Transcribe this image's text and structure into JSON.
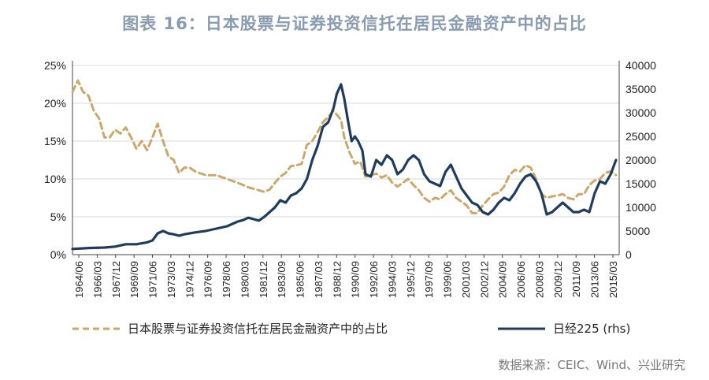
{
  "title": "图表 16：日本股票与证券投资信托在居民金融资产中的占比",
  "source": "数据来源：CEIC、Wind、兴业研究",
  "colors": {
    "share": "#c8a96b",
    "nikkei": "#1f3c5c",
    "axis": "#444444"
  },
  "chart_data": {
    "type": "line",
    "x_tick_labels": [
      "1964/06",
      "1966/03",
      "1967/12",
      "1969/09",
      "1971/06",
      "1973/03",
      "1974/12",
      "1976/09",
      "1978/06",
      "1980/03",
      "1981/12",
      "1983/09",
      "1985/06",
      "1987/03",
      "1988/12",
      "1990/09",
      "1992/06",
      "1994/03",
      "1995/12",
      "1997/09",
      "1999/06",
      "2001/03",
      "2002/12",
      "2004/09",
      "2006/06",
      "2008/03",
      "2009/12",
      "2011/09",
      "2013/06",
      "2015/03"
    ],
    "y_left": {
      "ticks": [
        "0%",
        "5%",
        "10%",
        "15%",
        "20%",
        "25%"
      ],
      "min": 0,
      "max": 25,
      "unit": "%"
    },
    "y_right": {
      "ticks": [
        "0",
        "5000",
        "10000",
        "15000",
        "20000",
        "25000",
        "30000",
        "35000",
        "40000"
      ],
      "min": 0,
      "max": 40000
    },
    "series": [
      {
        "name": "日本股票与证券投资信托在居民金融资产中的占比",
        "axis": "left",
        "style": "dashed",
        "x": [
          1964.5,
          1965.0,
          1965.5,
          1966.0,
          1966.5,
          1967.0,
          1967.5,
          1968.0,
          1968.5,
          1969.0,
          1969.5,
          1970.0,
          1970.5,
          1971.0,
          1971.5,
          1972.0,
          1972.5,
          1973.0,
          1973.5,
          1974.0,
          1974.5,
          1975.0,
          1975.5,
          1976.0,
          1977.0,
          1978.0,
          1979.0,
          1980.0,
          1981.0,
          1981.5,
          1982.0,
          1982.5,
          1983.0,
          1983.5,
          1984.0,
          1984.5,
          1985.0,
          1985.5,
          1986.0,
          1986.5,
          1987.0,
          1987.5,
          1988.0,
          1988.5,
          1989.0,
          1989.3,
          1989.7,
          1990.0,
          1990.5,
          1991.0,
          1991.5,
          1992.0,
          1992.5,
          1993.0,
          1993.5,
          1994.0,
          1994.5,
          1995.0,
          1995.5,
          1996.0,
          1996.5,
          1997.0,
          1997.5,
          1998.0,
          1998.5,
          1999.0,
          1999.5,
          2000.0,
          2000.5,
          2001.0,
          2001.5,
          2002.0,
          2002.5,
          2003.0,
          2003.5,
          2004.0,
          2004.5,
          2005.0,
          2005.5,
          2006.0,
          2006.5,
          2007.0,
          2007.5,
          2008.0,
          2008.5,
          2009.0,
          2009.5,
          2010.0,
          2010.5,
          2011.0,
          2011.5,
          2012.0,
          2012.5,
          2013.0,
          2013.5,
          2014.0,
          2014.5,
          2015.0,
          2015.5
        ],
        "values": [
          21.5,
          23.0,
          21.5,
          21.0,
          19.0,
          18.0,
          15.5,
          15.5,
          16.5,
          16.0,
          16.8,
          15.5,
          14.0,
          15.0,
          13.8,
          15.5,
          17.3,
          15.0,
          13.0,
          12.5,
          10.8,
          11.5,
          11.5,
          11.0,
          10.5,
          10.5,
          10.0,
          9.5,
          8.9,
          8.7,
          8.5,
          8.3,
          8.6,
          9.5,
          10.3,
          10.8,
          11.7,
          11.8,
          12.0,
          14.5,
          15.0,
          16.2,
          17.5,
          18.2,
          19.0,
          18.5,
          17.8,
          15.5,
          13.5,
          12.0,
          12.3,
          10.3,
          10.5,
          10.7,
          10.2,
          10.5,
          9.5,
          9.0,
          9.5,
          10.0,
          9.2,
          8.5,
          7.5,
          7.0,
          7.5,
          7.3,
          8.0,
          8.5,
          7.5,
          7.0,
          6.5,
          5.5,
          5.5,
          6.5,
          7.3,
          8.0,
          8.2,
          9.0,
          10.5,
          11.2,
          11.0,
          11.8,
          11.5,
          10.0,
          8.0,
          7.5,
          7.7,
          7.8,
          8.0,
          7.5,
          7.3,
          8.0,
          8.0,
          9.2,
          9.8,
          10.0,
          10.8,
          11.0,
          10.5
        ]
      },
      {
        "name": "日经225 (rhs)",
        "axis": "right",
        "style": "solid",
        "x": [
          1964.5,
          1966.0,
          1967.5,
          1968.5,
          1969.5,
          1970.5,
          1971.5,
          1972.0,
          1972.5,
          1973.0,
          1973.5,
          1974.0,
          1974.5,
          1975.0,
          1976.0,
          1977.0,
          1978.0,
          1979.0,
          1980.0,
          1980.5,
          1981.0,
          1981.5,
          1982.0,
          1982.5,
          1983.0,
          1983.5,
          1984.0,
          1984.5,
          1985.0,
          1985.5,
          1986.0,
          1986.5,
          1987.0,
          1987.5,
          1988.0,
          1988.5,
          1989.0,
          1989.3,
          1989.7,
          1990.0,
          1990.3,
          1990.7,
          1991.0,
          1991.3,
          1991.7,
          1992.0,
          1992.5,
          1993.0,
          1993.5,
          1994.0,
          1994.5,
          1995.0,
          1995.5,
          1996.0,
          1996.5,
          1997.0,
          1997.5,
          1998.0,
          1998.5,
          1999.0,
          1999.5,
          2000.0,
          2000.5,
          2001.0,
          2001.5,
          2002.0,
          2002.5,
          2003.0,
          2003.5,
          2004.0,
          2004.5,
          2005.0,
          2005.5,
          2006.0,
          2006.5,
          2007.0,
          2007.5,
          2008.0,
          2008.5,
          2009.0,
          2009.5,
          2010.0,
          2010.5,
          2011.0,
          2011.5,
          2012.0,
          2012.5,
          2013.0,
          2013.5,
          2014.0,
          2014.5,
          2015.0,
          2015.5
        ],
        "values": [
          1200,
          1400,
          1500,
          1700,
          2200,
          2200,
          2600,
          3000,
          4500,
          5000,
          4500,
          4300,
          4000,
          4300,
          4700,
          5000,
          5500,
          6000,
          7000,
          7300,
          7800,
          7500,
          7200,
          8000,
          9000,
          10000,
          11500,
          11000,
          12500,
          13000,
          14000,
          16000,
          20000,
          23000,
          27000,
          28000,
          31000,
          34000,
          36000,
          33000,
          29000,
          24000,
          25000,
          24000,
          22000,
          17000,
          16500,
          20000,
          19000,
          21000,
          20000,
          17000,
          18000,
          20000,
          21000,
          20000,
          17000,
          15500,
          15000,
          14500,
          17500,
          19000,
          16500,
          14000,
          12500,
          11000,
          10500,
          9000,
          8500,
          9500,
          11000,
          12000,
          11500,
          13000,
          15000,
          16500,
          17000,
          15500,
          13000,
          8500,
          9000,
          10000,
          11000,
          10000,
          9000,
          9000,
          9500,
          9000,
          13000,
          15500,
          15000,
          17000,
          20000
        ]
      }
    ]
  }
}
